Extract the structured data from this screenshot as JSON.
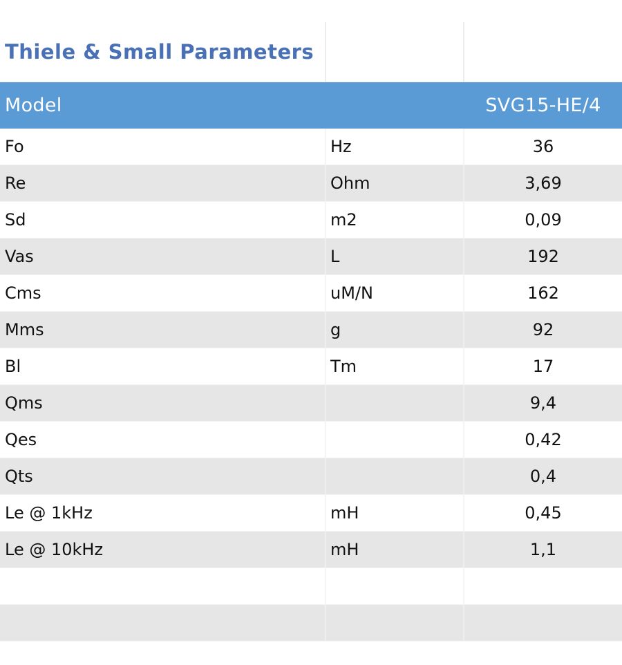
{
  "title": "Thiele & Small Parameters",
  "header": {
    "param_label": "Model",
    "unit_label": "",
    "model_value": "SVG15-HE/4"
  },
  "rows": [
    {
      "param": "Fo",
      "unit": "Hz",
      "value": "36"
    },
    {
      "param": "Re",
      "unit": "Ohm",
      "value": "3,69"
    },
    {
      "param": "Sd",
      "unit": "m2",
      "value": "0,09"
    },
    {
      "param": "Vas",
      "unit": "L",
      "value": "192"
    },
    {
      "param": "Cms",
      "unit": "uM/N",
      "value": "162"
    },
    {
      "param": "Mms",
      "unit": "g",
      "value": "92"
    },
    {
      "param": "Bl",
      "unit": "Tm",
      "value": "17"
    },
    {
      "param": "Qms",
      "unit": "",
      "value": "9,4"
    },
    {
      "param": "Qes",
      "unit": "",
      "value": "0,42"
    },
    {
      "param": "Qts",
      "unit": "",
      "value": "0,4"
    },
    {
      "param": "Le @ 1kHz",
      "unit": "mH",
      "value": "0,45"
    },
    {
      "param": "Le @ 10kHz",
      "unit": "mH",
      "value": "1,1"
    }
  ],
  "colors": {
    "title": "#4a70b5",
    "header_bg": "#5b9bd5",
    "stripe": "#e7e6e6"
  }
}
